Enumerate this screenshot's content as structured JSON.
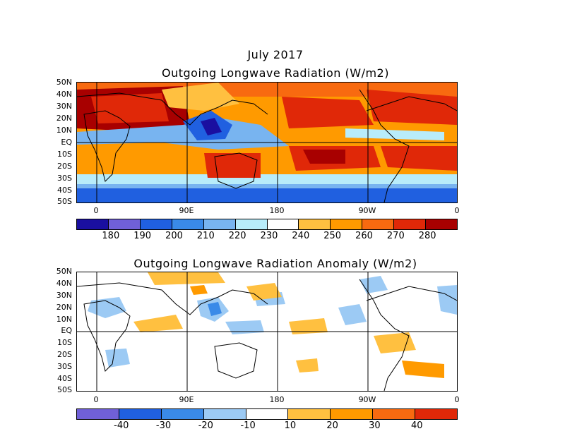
{
  "header": {
    "date": "July 2017",
    "title_top": "Outgoing Longwave Radiation (W/m2)",
    "title_bottom": "Outgoing Longwave Radiation Anomaly (W/m2)"
  },
  "lat_labels": [
    "50N",
    "40N",
    "30N",
    "20N",
    "10N",
    "EQ",
    "10S",
    "20S",
    "30S",
    "40S",
    "50S"
  ],
  "lon_labels": [
    "0",
    "90E",
    "180",
    "90W",
    "0"
  ],
  "colorbar_top": {
    "labels": [
      "180",
      "190",
      "200",
      "210",
      "220",
      "230",
      "240",
      "250",
      "260",
      "270",
      "280"
    ],
    "colors": [
      "#1a0fa0",
      "#7060d8",
      "#2060e0",
      "#3a8ae8",
      "#78b4f0",
      "#b8ecfa",
      "#ffffff",
      "#ffc040",
      "#ff9a00",
      "#f86a10",
      "#e02808",
      "#a80000"
    ]
  },
  "colorbar_bottom": {
    "labels": [
      "-40",
      "-30",
      "-20",
      "-10",
      "10",
      "20",
      "30",
      "40"
    ],
    "colors": [
      "#7060d8",
      "#2060e0",
      "#3a8ae8",
      "#9ccaf4",
      "#ffffff",
      "#ffc040",
      "#ff9a00",
      "#f86a10",
      "#e02808"
    ]
  }
}
